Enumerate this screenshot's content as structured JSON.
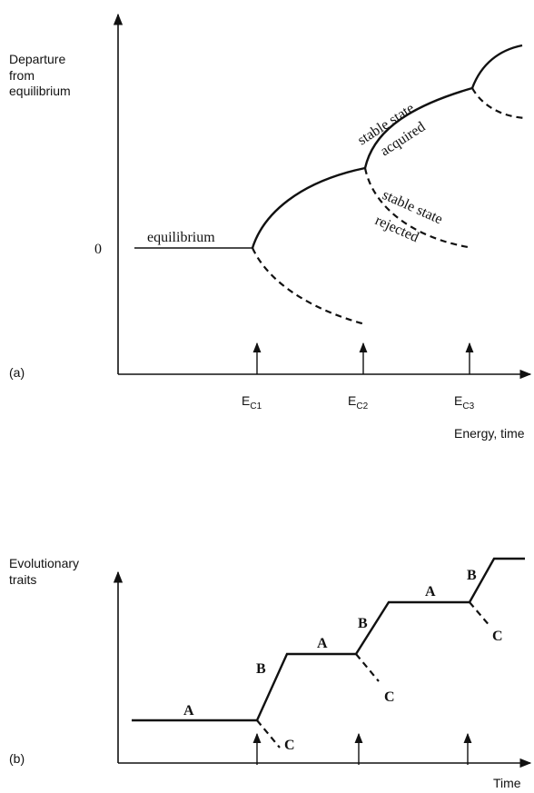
{
  "panel_a": {
    "y_label": [
      "Departure",
      "from",
      "equilibrium"
    ],
    "zero": "0",
    "equilibrium": "equilibrium",
    "acquired": [
      "stable state",
      "acquired"
    ],
    "rejected": [
      "stable state",
      "rejected"
    ],
    "tag": "(a)",
    "thresholds": [
      {
        "main": "E",
        "sub": "C1"
      },
      {
        "main": "E",
        "sub": "C2"
      },
      {
        "main": "E",
        "sub": "C3"
      }
    ],
    "x_label": "Energy, time"
  },
  "panel_b": {
    "y_label": [
      "Evolutionary",
      "traits"
    ],
    "marks": [
      "A",
      "B",
      "C",
      "A",
      "B",
      "C",
      "A",
      "B",
      "C"
    ],
    "tag": "(b)",
    "x_label": "Time"
  }
}
